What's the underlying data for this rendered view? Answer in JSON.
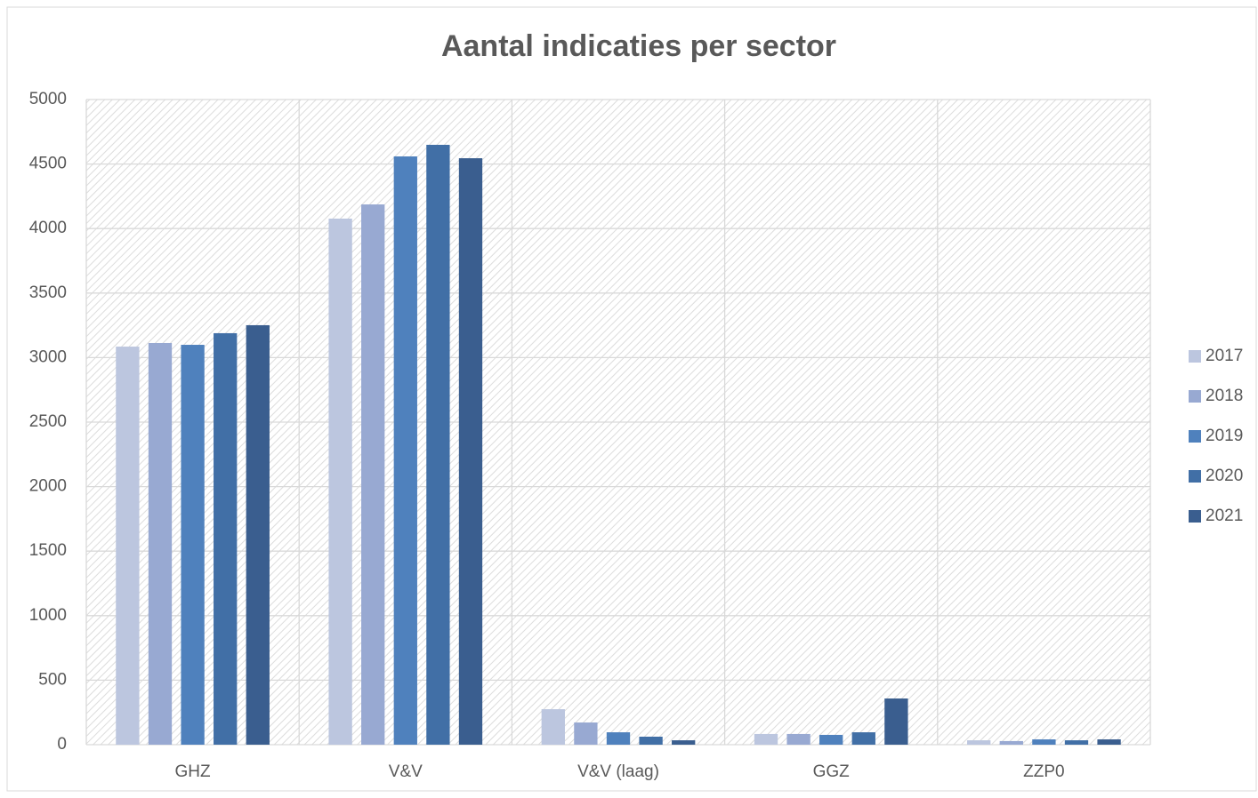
{
  "chart_data": {
    "type": "bar",
    "title": "Aantal indicaties per sector",
    "categories": [
      "GHZ",
      "V&V",
      "V&V (laag)",
      "GGZ",
      "ZZP0"
    ],
    "series": [
      {
        "name": "2017",
        "color": "#bcc6df",
        "values": [
          3085,
          4077,
          275,
          83,
          34
        ]
      },
      {
        "name": "2018",
        "color": "#98a9d2",
        "values": [
          3113,
          4187,
          172,
          83,
          28
        ]
      },
      {
        "name": "2019",
        "color": "#4f81bd",
        "values": [
          3099,
          4559,
          96,
          76,
          41
        ]
      },
      {
        "name": "2020",
        "color": "#416fa6",
        "values": [
          3189,
          4649,
          62,
          96,
          34
        ]
      },
      {
        "name": "2021",
        "color": "#3a5e8f",
        "values": [
          3251,
          4545,
          34,
          358,
          41
        ]
      }
    ],
    "ylim": [
      0,
      5000
    ],
    "yticks": [
      0,
      500,
      1000,
      1500,
      2000,
      2500,
      3000,
      3500,
      4000,
      4500,
      5000
    ],
    "grid": true,
    "legend": "right"
  }
}
